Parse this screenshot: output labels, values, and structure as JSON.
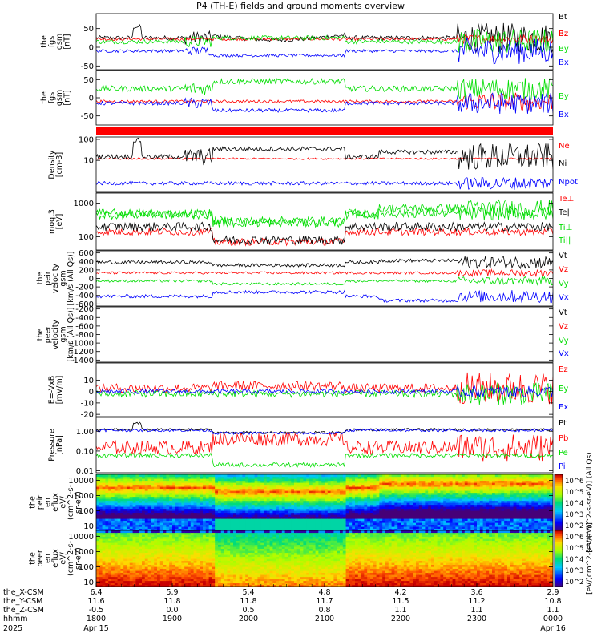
{
  "title": "P4 (TH-E) fields and ground moments overview",
  "colors": {
    "black": "#000000",
    "red": "#ff0000",
    "green": "#00dd00",
    "blue": "#0000ff"
  },
  "chart_data": [
    {
      "id": "fgs_all",
      "type": "line",
      "ylabel": [
        "the",
        "fgs",
        "gsm",
        "[nT]"
      ],
      "ylim": [
        -60,
        90
      ],
      "yticks": [
        50,
        0,
        -50
      ],
      "series": [
        {
          "name": "Bt",
          "color": "black"
        },
        {
          "name": "Bz",
          "color": "red"
        },
        {
          "name": "By",
          "color": "green"
        },
        {
          "name": "Bx",
          "color": "blue"
        }
      ]
    },
    {
      "id": "fgs_comp",
      "type": "line",
      "ylabel": [
        "the",
        "fgs",
        "gsm",
        "[nT]"
      ],
      "ylim": [
        -75,
        75
      ],
      "yticks": [
        50,
        0,
        -50
      ],
      "series": [
        {
          "name": "Bz",
          "color": "red"
        },
        {
          "name": "By",
          "color": "green"
        },
        {
          "name": "Bx",
          "color": "blue"
        }
      ]
    },
    {
      "id": "density",
      "type": "line",
      "log": true,
      "ylabel": [
        "Density",
        "[cm-3]"
      ],
      "ylim": [
        0.3,
        130
      ],
      "yticks": [
        100,
        10
      ],
      "series": [
        {
          "name": "Ne",
          "color": "red"
        },
        {
          "name": "Ni",
          "color": "black"
        },
        {
          "name": "Npot",
          "color": "blue"
        }
      ]
    },
    {
      "id": "temp",
      "type": "line",
      "log": true,
      "ylabel": [
        "moqt3",
        "[eV]"
      ],
      "ylim": [
        40,
        2000
      ],
      "yticks": [
        1000,
        100
      ],
      "series": [
        {
          "name": "Te⊥",
          "color": "red"
        },
        {
          "name": "Te||",
          "color": "black"
        },
        {
          "name": "Ti⊥",
          "color": "green"
        },
        {
          "name": "Ti||",
          "color": "green"
        }
      ]
    },
    {
      "id": "peir_vel",
      "type": "line",
      "ylabel": [
        "the",
        "peir",
        "velocity",
        "gsm",
        "[km/s (All Qs)]"
      ],
      "ylim": [
        -650,
        650
      ],
      "yticks": [
        600,
        400,
        200,
        0,
        -200,
        -400,
        -600
      ],
      "series": [
        {
          "name": "Vt",
          "color": "black"
        },
        {
          "name": "Vz",
          "color": "red"
        },
        {
          "name": "Vy",
          "color": "green"
        },
        {
          "name": "Vx",
          "color": "blue"
        }
      ]
    },
    {
      "id": "peer_vel",
      "type": "line",
      "ylabel": [
        "the",
        "peer",
        "velocity",
        "gsm",
        "[km/s (All Qs)]"
      ],
      "ylim": [
        -1450,
        -150
      ],
      "yticks": [
        -200,
        -400,
        -600,
        -800,
        -1000,
        -1200,
        -1400
      ],
      "series": [
        {
          "name": "Vt",
          "color": "black"
        },
        {
          "name": "Vz",
          "color": "red"
        },
        {
          "name": "Vy",
          "color": "green"
        },
        {
          "name": "Vx",
          "color": "blue"
        }
      ]
    },
    {
      "id": "efield",
      "type": "line",
      "ylabel": [
        "E=-VxB",
        "[mV/m]"
      ],
      "ylim": [
        -22,
        25
      ],
      "yticks": [
        10,
        0,
        -10,
        -20
      ],
      "series": [
        {
          "name": "Ez",
          "color": "red"
        },
        {
          "name": "Ey",
          "color": "green"
        },
        {
          "name": "Ex",
          "color": "blue"
        }
      ]
    },
    {
      "id": "pressure",
      "type": "line",
      "log": true,
      "ylabel": [
        "Pressure",
        "[nPa]"
      ],
      "ylim": [
        0.008,
        5
      ],
      "yticks": [
        "1.00",
        "0.10",
        "0.01"
      ],
      "series": [
        {
          "name": "Pt",
          "color": "black"
        },
        {
          "name": "Pb",
          "color": "red"
        },
        {
          "name": "Pe",
          "color": "green"
        },
        {
          "name": "Pi",
          "color": "blue"
        }
      ]
    },
    {
      "id": "peir_eflux",
      "type": "heatmap",
      "ylabel": [
        "the",
        "peir",
        "en",
        "eflux",
        "eV/",
        "(cm^2-s-",
        "sr-eV)"
      ],
      "yticks": [
        10000,
        1000,
        100,
        10
      ]
    },
    {
      "id": "peer_eflux",
      "type": "heatmap",
      "ylabel": [
        "the",
        "peer",
        "en",
        "eflux",
        "eV/",
        "(cm^2-s-",
        "sr-eV)"
      ],
      "yticks": [
        10000,
        1000,
        100,
        10
      ]
    }
  ],
  "colorbars": [
    {
      "label": "[eV/(cm^2-s-sr-eV)] (All Qs)",
      "ticks": [
        "10^6",
        "10^5",
        "10^4",
        "10^3",
        "10^2"
      ]
    },
    {
      "label": "[eV/(cm^2-s-sr-eV)]",
      "ticks": [
        "10^6",
        "10^5",
        "10^4",
        "10^3",
        "10^2"
      ]
    }
  ],
  "xaxis": {
    "row_labels": [
      "the_X-CSM",
      "the_Y-CSM",
      "the_Z-CSM",
      "hhmm",
      "2025"
    ],
    "ticks": [
      {
        "x": "6.4",
        "y": "11.6",
        "z": "-0.5",
        "t": "1800",
        "d": "Apr 15"
      },
      {
        "x": "5.9",
        "y": "11.8",
        "z": "0.0",
        "t": "1900",
        "d": ""
      },
      {
        "x": "5.4",
        "y": "11.8",
        "z": "0.5",
        "t": "2000",
        "d": ""
      },
      {
        "x": "4.8",
        "y": "11.7",
        "z": "0.8",
        "t": "2100",
        "d": ""
      },
      {
        "x": "4.2",
        "y": "11.5",
        "z": "1.1",
        "t": "2200",
        "d": ""
      },
      {
        "x": "3.6",
        "y": "11.2",
        "z": "1.1",
        "t": "2300",
        "d": ""
      },
      {
        "x": "2.9",
        "y": "10.8",
        "z": "1.1",
        "t": "0000",
        "d": "Apr 16"
      }
    ]
  }
}
